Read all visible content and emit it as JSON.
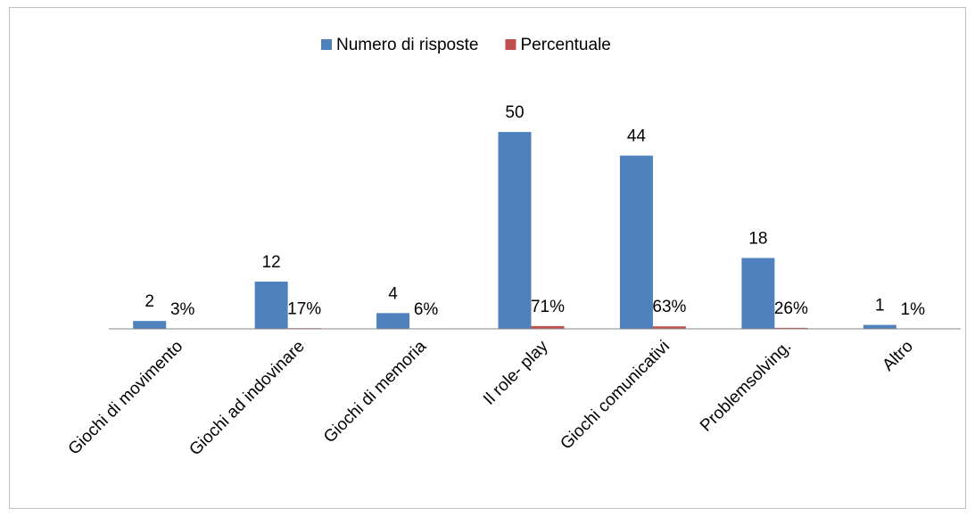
{
  "chart_data": {
    "type": "bar",
    "categories": [
      "Giochi di movimento",
      "Giochi ad indovinare",
      "Giochi di memoria",
      "Il role- play",
      "Giochi comunicativi",
      "Problemsolving.",
      "Altro"
    ],
    "series": [
      {
        "name": "Numero di risposte",
        "color": "#4f81bd",
        "values": [
          2,
          12,
          4,
          50,
          44,
          18,
          1
        ]
      },
      {
        "name": "Percentuale",
        "color": "#c0504d",
        "values": [
          0.03,
          0.17,
          0.06,
          0.71,
          0.63,
          0.26,
          0.01
        ],
        "value_labels": [
          "3%",
          "17%",
          "6%",
          "71%",
          "63%",
          "26%",
          "1%"
        ]
      }
    ],
    "ylim": [
      0,
      55
    ],
    "legend": "top"
  }
}
